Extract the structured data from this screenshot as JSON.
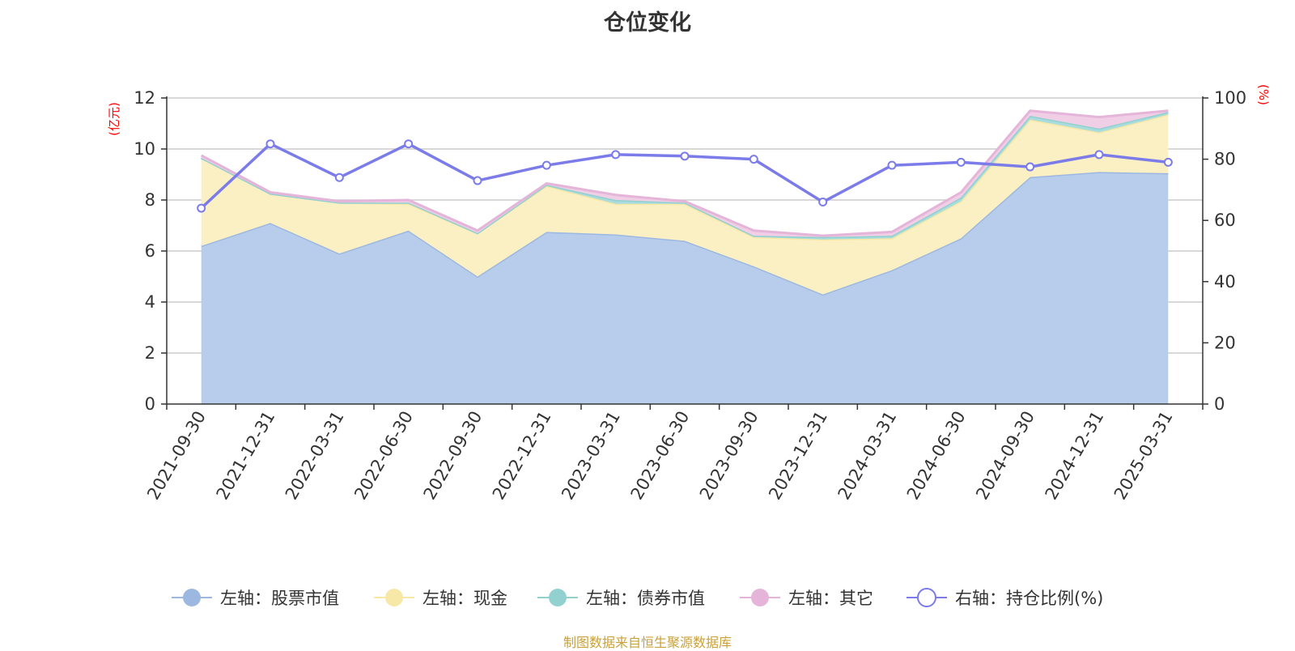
{
  "chart_data": {
    "type": "area",
    "title": "仓位变化",
    "source": "制图数据来自恒生聚源数据库",
    "left_axis": {
      "unit": "(亿元)",
      "range": [
        0,
        12
      ],
      "ticks": [
        0,
        2,
        4,
        6,
        8,
        10,
        12
      ],
      "unit_color": "#ff0000"
    },
    "right_axis": {
      "unit": "(%)",
      "range": [
        0,
        100
      ],
      "ticks": [
        0,
        20,
        40,
        60,
        80,
        100
      ],
      "unit_color": "#ff0000"
    },
    "grid": true,
    "legend_position": "bottom",
    "x": [
      "2021-09-30",
      "2021-12-31",
      "2022-03-31",
      "2022-06-30",
      "2022-09-30",
      "2022-12-31",
      "2023-03-31",
      "2023-06-30",
      "2023-09-30",
      "2023-12-31",
      "2024-03-31",
      "2024-06-30",
      "2024-09-30",
      "2024-12-31",
      "2025-03-31"
    ],
    "series": [
      {
        "name": "左轴：股票市值",
        "axis": "left",
        "stacked": true,
        "color": "#9db8e0",
        "fill": "#b8cdeb",
        "values": [
          6.2,
          7.1,
          5.9,
          6.8,
          5.0,
          6.75,
          6.65,
          6.4,
          5.4,
          4.3,
          5.25,
          6.5,
          8.9,
          9.1,
          9.05
        ]
      },
      {
        "name": "左轴：现金",
        "axis": "left",
        "stacked": true,
        "color": "#f7e8a8",
        "fill": "#fbf0c3",
        "values": [
          3.45,
          1.15,
          2.0,
          1.05,
          1.7,
          1.8,
          1.2,
          1.45,
          1.15,
          2.15,
          1.25,
          1.45,
          2.25,
          1.55,
          2.3
        ]
      },
      {
        "name": "左轴：债券市值",
        "axis": "left",
        "stacked": true,
        "color": "#93d0d0",
        "fill": "#a9dcdc",
        "values": [
          0.0,
          0.0,
          0.0,
          0.05,
          0.0,
          0.05,
          0.15,
          0.05,
          0.05,
          0.1,
          0.1,
          0.15,
          0.15,
          0.15,
          0.1
        ]
      },
      {
        "name": "左轴：其它",
        "axis": "left",
        "stacked": true,
        "color": "#e5b4d9",
        "fill": "#f0cfe6",
        "values": [
          0.1,
          0.05,
          0.05,
          0.1,
          0.1,
          0.05,
          0.2,
          0.05,
          0.2,
          0.05,
          0.15,
          0.2,
          0.2,
          0.45,
          0.05
        ]
      },
      {
        "name": "右轴：持仓比例(%)",
        "axis": "right",
        "stacked": false,
        "color": "#7b7bea",
        "fill": "none",
        "values": [
          64,
          85,
          74,
          85,
          73,
          78,
          81.5,
          81,
          80,
          66,
          78,
          79,
          77.5,
          81.5,
          79
        ]
      }
    ]
  }
}
